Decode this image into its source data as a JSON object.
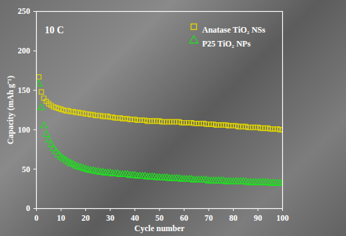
{
  "chart_data": {
    "type": "scatter",
    "annotation": "10 C",
    "x_label": "Cycle number",
    "y_label": "Capacity (mAh g⁻¹)",
    "x": [
      1,
      2,
      3,
      4,
      5,
      6,
      7,
      8,
      9,
      10,
      11,
      12,
      13,
      14,
      15,
      16,
      17,
      18,
      19,
      20,
      21,
      22,
      23,
      24,
      25,
      26,
      27,
      28,
      29,
      30,
      31,
      32,
      33,
      34,
      35,
      36,
      37,
      38,
      39,
      40,
      41,
      42,
      43,
      44,
      45,
      46,
      47,
      48,
      49,
      50,
      51,
      52,
      53,
      54,
      55,
      56,
      57,
      58,
      59,
      60,
      61,
      62,
      63,
      64,
      65,
      66,
      67,
      68,
      69,
      70,
      71,
      72,
      73,
      74,
      75,
      76,
      77,
      78,
      79,
      80,
      81,
      82,
      83,
      84,
      85,
      86,
      87,
      88,
      89,
      90,
      91,
      92,
      93,
      94,
      95,
      96,
      97,
      98,
      99,
      100
    ],
    "series": [
      {
        "name": "Anatase TiO₂ NSs",
        "color": "#e0d400",
        "marker": "square",
        "values": [
          167,
          148,
          140,
          136,
          133,
          131,
          129,
          128,
          127,
          126,
          125,
          124,
          124,
          123,
          123,
          122,
          122,
          121,
          121,
          120,
          120,
          119,
          119,
          118,
          118,
          118,
          117,
          117,
          117,
          116,
          116,
          115,
          115,
          115,
          114,
          114,
          114,
          113,
          113,
          113,
          112,
          112,
          112,
          112,
          111,
          111,
          111,
          111,
          111,
          111,
          110,
          110,
          110,
          110,
          110,
          110,
          110,
          110,
          109,
          109,
          109,
          109,
          109,
          108,
          108,
          108,
          108,
          108,
          107,
          107,
          107,
          107,
          106,
          106,
          106,
          106,
          106,
          105,
          105,
          105,
          105,
          104,
          104,
          104,
          104,
          103,
          103,
          103,
          103,
          103,
          102,
          102,
          102,
          102,
          101,
          101,
          101,
          101,
          100,
          100
        ]
      },
      {
        "name": "P25 TiO₂ NPs",
        "color": "#22dd22",
        "marker": "triangle",
        "values": [
          158,
          128,
          105,
          94,
          87,
          81,
          76,
          72,
          68,
          65,
          63,
          61,
          59,
          57,
          56,
          54,
          53,
          52,
          51,
          50,
          49,
          48,
          48,
          47,
          47,
          46,
          46,
          45,
          45,
          45,
          44,
          44,
          44,
          43,
          43,
          43,
          43,
          42,
          42,
          42,
          41,
          41,
          41,
          41,
          40,
          40,
          40,
          40,
          39,
          39,
          39,
          39,
          39,
          38,
          38,
          38,
          38,
          38,
          37,
          37,
          37,
          37,
          37,
          36,
          36,
          36,
          36,
          36,
          36,
          35,
          35,
          35,
          35,
          35,
          35,
          35,
          34,
          34,
          34,
          34,
          34,
          34,
          34,
          34,
          34,
          33,
          33,
          33,
          33,
          33,
          33,
          33,
          33,
          33,
          32,
          32,
          32,
          32,
          32,
          32
        ]
      }
    ],
    "xlim": [
      0,
      100
    ],
    "xticks": [
      0,
      10,
      20,
      30,
      40,
      50,
      60,
      70,
      80,
      90,
      100
    ],
    "ylim": [
      0,
      250
    ],
    "yticks": [
      0,
      50,
      100,
      150,
      200,
      250
    ],
    "grid": false,
    "legend": "top-right"
  }
}
